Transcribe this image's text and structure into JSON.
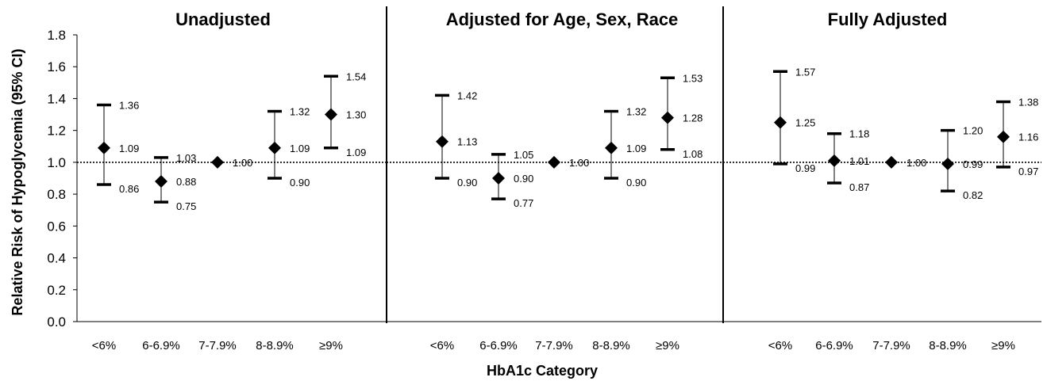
{
  "chart_data": {
    "type": "scatter",
    "ylabel": "Relative Risk of Hypoglycemia (95% CI)",
    "xlabel": "HbA1c Category",
    "ylim": [
      0,
      1.8
    ],
    "yticks": [
      "0.0",
      "0.2",
      "0.4",
      "0.6",
      "0.8",
      "1.0",
      "1.2",
      "1.4",
      "1.6",
      "1.8"
    ],
    "reference_line": 1.0,
    "categories": [
      "<6%",
      "6-6.9%",
      "7-7.9%",
      "8-8.9%",
      "≥9%"
    ],
    "panels": [
      {
        "title": "Unadjusted",
        "estimates": [
          1.09,
          0.88,
          1.0,
          1.09,
          1.3
        ],
        "upper": [
          1.36,
          1.03,
          null,
          1.32,
          1.54
        ],
        "lower": [
          0.86,
          0.75,
          null,
          0.9,
          1.09
        ],
        "estimate_labels": [
          "1.09",
          "0.88",
          "1.00",
          "1.09",
          "1.30"
        ],
        "upper_labels": [
          "1.36",
          "1.03",
          "",
          "1.32",
          "1.54"
        ],
        "lower_labels": [
          "0.86",
          "0.75",
          "",
          "0.90",
          "1.09"
        ]
      },
      {
        "title": "Adjusted for Age, Sex, Race",
        "estimates": [
          1.13,
          0.9,
          1.0,
          1.09,
          1.28
        ],
        "upper": [
          1.42,
          1.05,
          null,
          1.32,
          1.53
        ],
        "lower": [
          0.9,
          0.77,
          null,
          0.9,
          1.08
        ],
        "estimate_labels": [
          "1.13",
          "0.90",
          "1.00",
          "1.09",
          "1.28"
        ],
        "upper_labels": [
          "1.42",
          "1.05",
          "",
          "1.32",
          "1.53"
        ],
        "lower_labels": [
          "0.90",
          "0.77",
          "",
          "0.90",
          "1.08"
        ]
      },
      {
        "title": "Fully Adjusted",
        "estimates": [
          1.25,
          1.01,
          1.0,
          0.99,
          1.16
        ],
        "upper": [
          1.57,
          1.18,
          null,
          1.2,
          1.38
        ],
        "lower": [
          0.99,
          0.87,
          null,
          0.82,
          0.97
        ],
        "estimate_labels": [
          "1.25",
          "1.01",
          "1.00",
          "0.99",
          "1.16"
        ],
        "upper_labels": [
          "1.57",
          "1.18",
          "",
          "1.20",
          "1.38"
        ],
        "lower_labels": [
          "0.99",
          "0.87",
          "",
          "0.82",
          "0.97"
        ]
      }
    ],
    "grid": false,
    "legend": "none"
  }
}
